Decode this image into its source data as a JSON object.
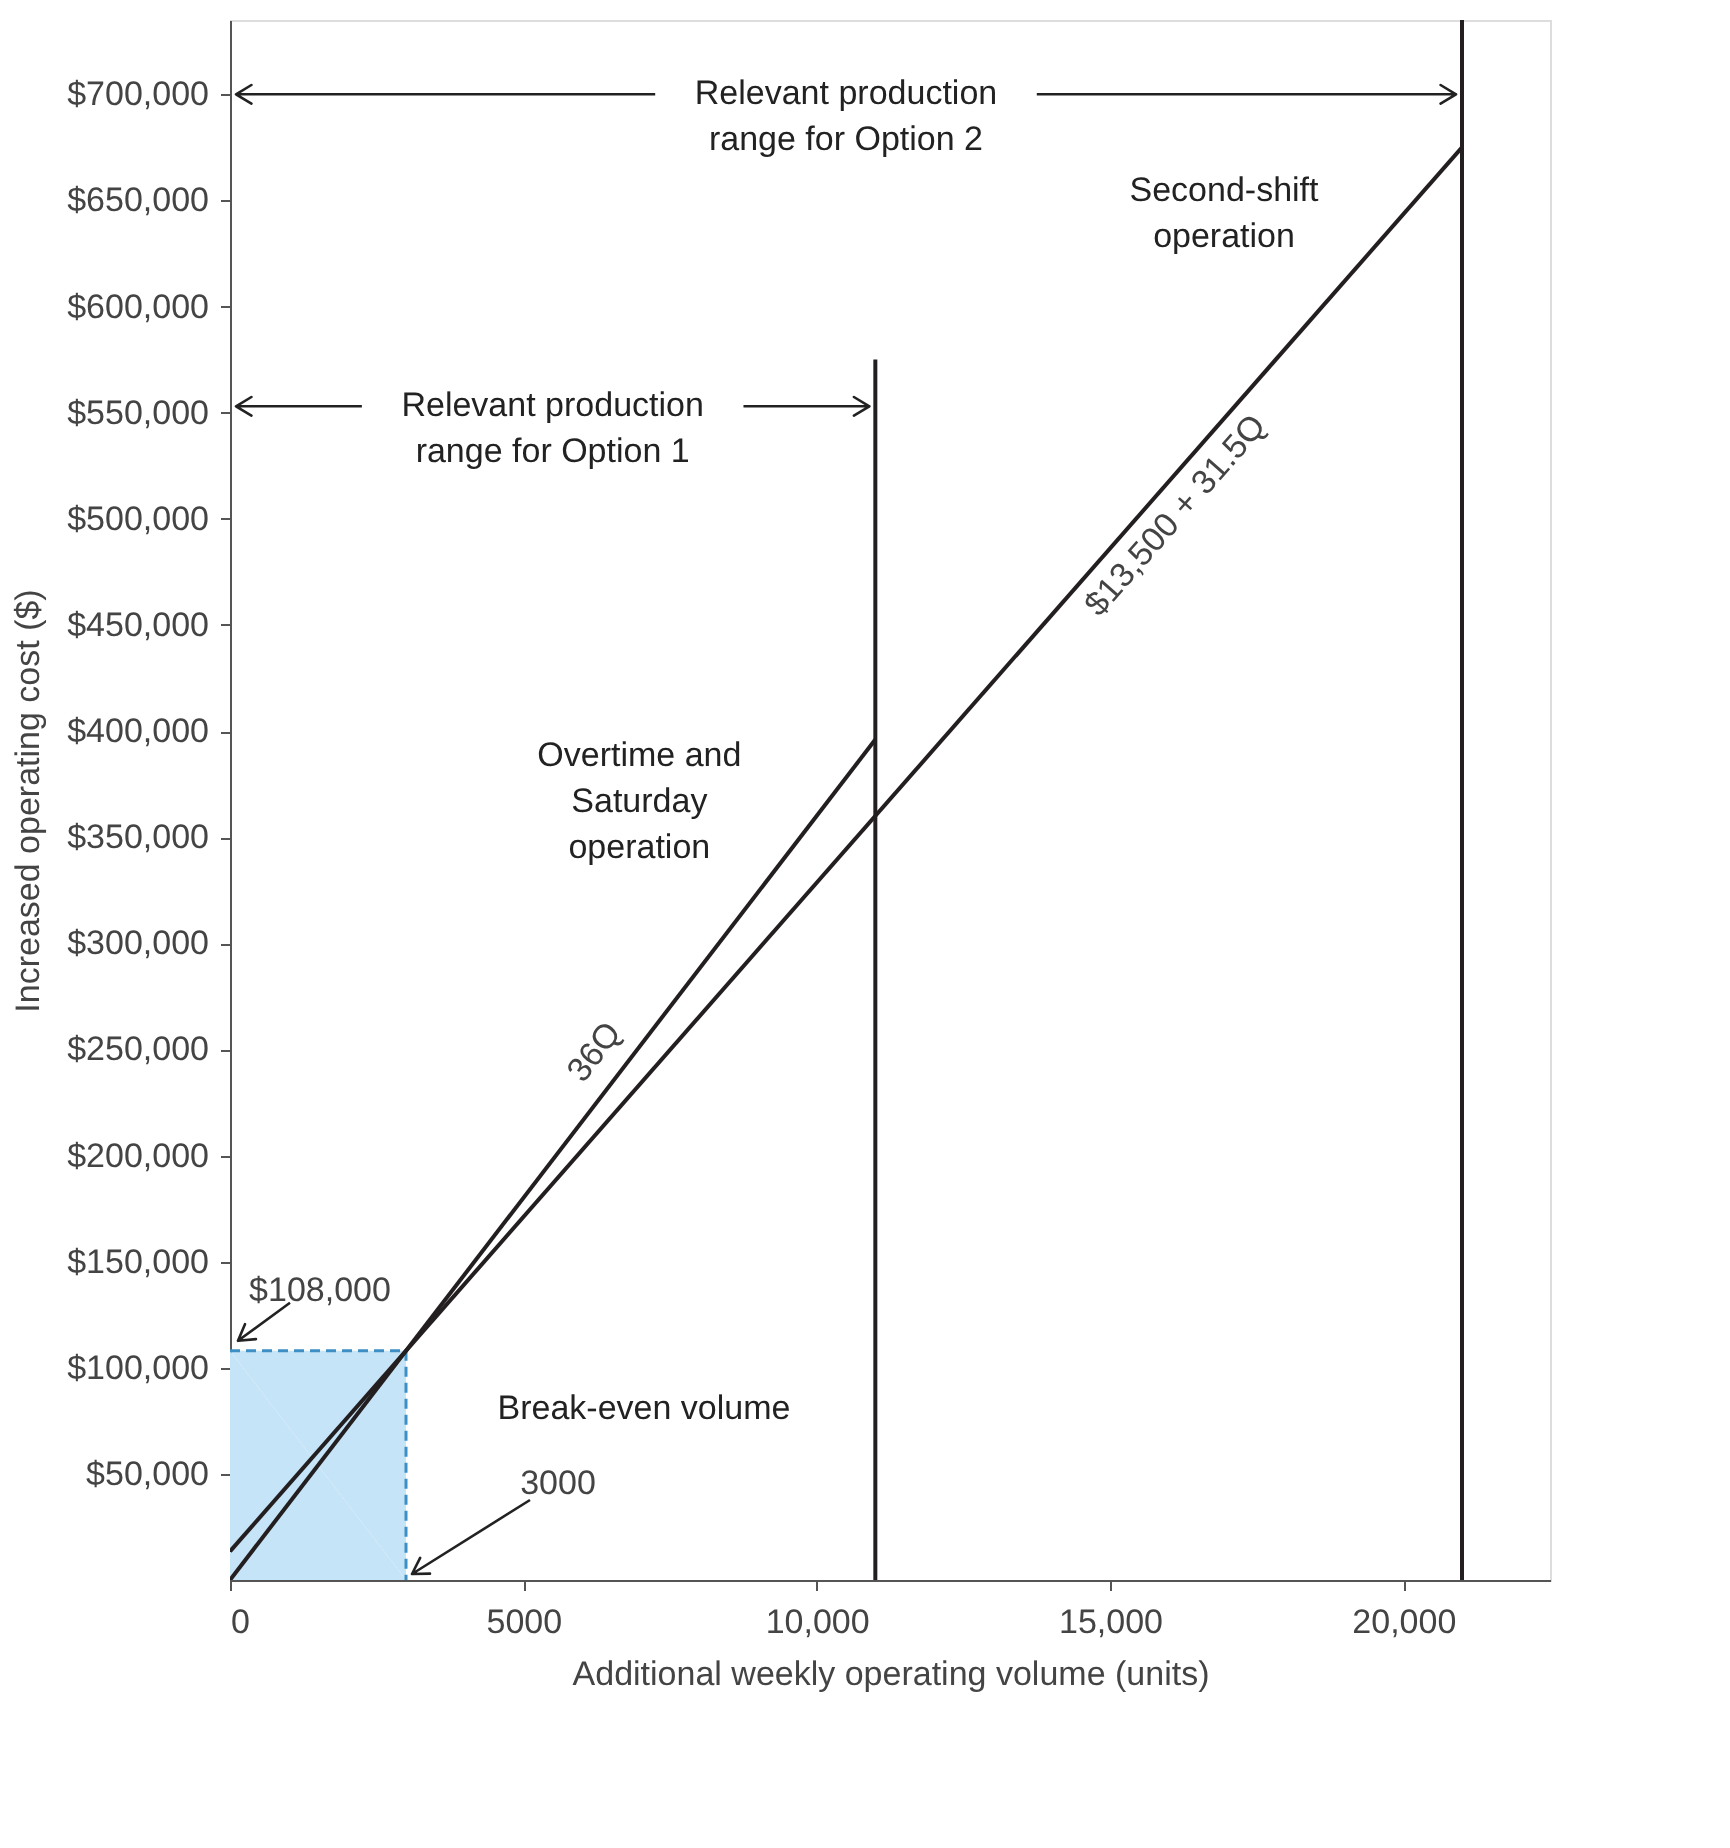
{
  "chart_data": {
    "type": "line",
    "xlabel": "Additional weekly operating volume (units)",
    "ylabel": "Increased operating cost ($)",
    "xlim": [
      0,
      22500
    ],
    "ylim": [
      0,
      735000
    ],
    "xticks": [
      0,
      5000,
      {
        "value": 10000,
        "label": "10,000"
      },
      {
        "value": 15000,
        "label": "15,000"
      },
      {
        "value": 20000,
        "label": "20,000"
      }
    ],
    "yticks": [
      {
        "value": 50000,
        "label": "$50,000"
      },
      {
        "value": 100000,
        "label": "$100,000"
      },
      {
        "value": 150000,
        "label": "$150,000"
      },
      {
        "value": 200000,
        "label": "$200,000"
      },
      {
        "value": 250000,
        "label": "$250,000"
      },
      {
        "value": 300000,
        "label": "$300,000"
      },
      {
        "value": 350000,
        "label": "$350,000"
      },
      {
        "value": 400000,
        "label": "$400,000"
      },
      {
        "value": 450000,
        "label": "$450,000"
      },
      {
        "value": 500000,
        "label": "$500,000"
      },
      {
        "value": 550000,
        "label": "$550,000"
      },
      {
        "value": 600000,
        "label": "$600,000"
      },
      {
        "value": 650000,
        "label": "$650,000"
      },
      {
        "value": 700000,
        "label": "$700,000"
      }
    ],
    "series": [
      {
        "name": "Break-even volume",
        "type": "area",
        "color": "#c6e4f7",
        "line_style": "dashed",
        "x": [
          0,
          3000
        ],
        "values": [
          108000,
          108000
        ]
      },
      {
        "name": "Overtime and Saturday operation",
        "color": "#231f20",
        "x": [
          0,
          11000
        ],
        "values": [
          0,
          396000
        ]
      },
      {
        "name": "Second-shift operation",
        "color": "#231f20",
        "x": [
          0,
          21000
        ],
        "values": [
          13500,
          675000
        ]
      },
      {
        "color": "#231f20",
        "x": [
          11000,
          11000
        ],
        "values": [
          0,
          575000
        ]
      },
      {
        "color": "#231f20",
        "x": [
          21000,
          21000
        ],
        "values": [
          0,
          735000
        ]
      }
    ],
    "annotations": [
      {
        "text": "Relevant production\nrange for Option 2",
        "x": 21000,
        "y": 700000
      },
      {
        "text": "Relevant production\nrange for Option 1",
        "x": 11000,
        "y": 553000
      },
      {
        "text": "36Q",
        "x": 6900,
        "y": 248400
      },
      {
        "text": "$13,500 + 31.5Q",
        "x": 15450,
        "y": 500175
      },
      {
        "text": "$108,000",
        "x": 0,
        "y": 108000
      },
      {
        "text": "3000",
        "x": 3000,
        "y": 0
      }
    ],
    "grid": false,
    "legend": false,
    "marker": "none",
    "line_style": "solid"
  }
}
